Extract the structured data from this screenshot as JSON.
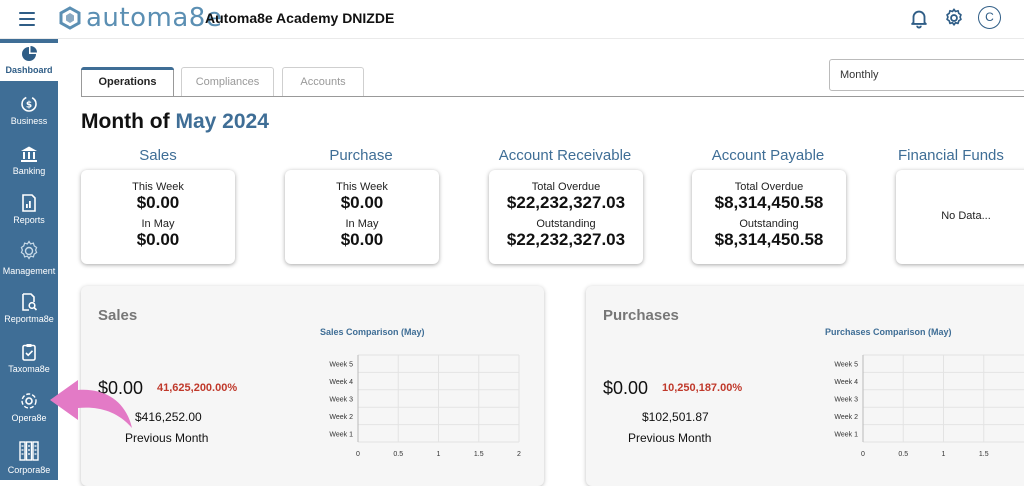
{
  "header": {
    "logo_text": "automa8e",
    "org_name": "Automa8e Academy DNIZDE",
    "avatar_initial": "C"
  },
  "sidebar": {
    "items": [
      {
        "label": "Dashboard",
        "icon": "pie-chart-icon"
      },
      {
        "label": "Business",
        "icon": "dollar-cycle-icon"
      },
      {
        "label": "Banking",
        "icon": "bank-icon"
      },
      {
        "label": "Reports",
        "icon": "report-icon"
      },
      {
        "label": "Management",
        "icon": "gear-icon"
      },
      {
        "label": "Reportma8e",
        "icon": "report-search-icon"
      },
      {
        "label": "Taxoma8e",
        "icon": "clipboard-check-icon"
      },
      {
        "label": "Opera8e",
        "icon": "operations-icon"
      },
      {
        "label": "Corpora8e",
        "icon": "building-icon"
      }
    ]
  },
  "tabs": [
    "Operations",
    "Compliances",
    "Accounts"
  ],
  "period_select": "Monthly",
  "title": {
    "prefix": "Month of",
    "period": "May 2024"
  },
  "cards": [
    {
      "title": "Sales",
      "l1": "This Week",
      "v1": "$0.00",
      "l2": "In May",
      "v2": "$0.00"
    },
    {
      "title": "Purchase",
      "l1": "This Week",
      "v1": "$0.00",
      "l2": "In May",
      "v2": "$0.00"
    },
    {
      "title": "Account Receivable",
      "l1": "Total Overdue",
      "v1": "$22,232,327.03",
      "l2": "Outstanding",
      "v2": "$22,232,327.03"
    },
    {
      "title": "Account Payable",
      "l1": "Total Overdue",
      "v1": "$8,314,450.58",
      "l2": "Outstanding",
      "v2": "$8,314,450.58"
    },
    {
      "title": "Financial Funds",
      "nodata": "No Data..."
    }
  ],
  "panels": [
    {
      "title": "Sales",
      "amount": "$0.00",
      "pct": "41,625,200.00%",
      "prev_amount": "$416,252.00",
      "prev_label": "Previous Month"
    },
    {
      "title": "Purchases",
      "amount": "$0.00",
      "pct": "10,250,187.00%",
      "prev_amount": "$102,501.87",
      "prev_label": "Previous Month"
    }
  ],
  "chart_data": [
    {
      "type": "bar",
      "title": "Sales Comparison (May)",
      "categories": [
        "Week 5",
        "Week 4",
        "Week 3",
        "Week 2",
        "Week 1"
      ],
      "values": [
        0,
        0,
        0,
        0,
        0
      ],
      "xticks": [
        "0",
        "0.5",
        "1",
        "1.5",
        "2"
      ],
      "xlim": [
        0,
        2
      ],
      "orientation": "horizontal",
      "grid": true
    },
    {
      "type": "bar",
      "title": "Purchases Comparison (May)",
      "categories": [
        "Week 5",
        "Week 4",
        "Week 3",
        "Week 2",
        "Week 1"
      ],
      "values": [
        0,
        0,
        0,
        0,
        0
      ],
      "xticks": [
        "0",
        "0.5",
        "1",
        "1.5"
      ],
      "xlim": [
        0,
        2
      ],
      "orientation": "horizontal",
      "grid": true
    }
  ],
  "colors": {
    "brand": "#3f6e96",
    "negative": "#c0392b",
    "pointer": "#e37ac6"
  }
}
